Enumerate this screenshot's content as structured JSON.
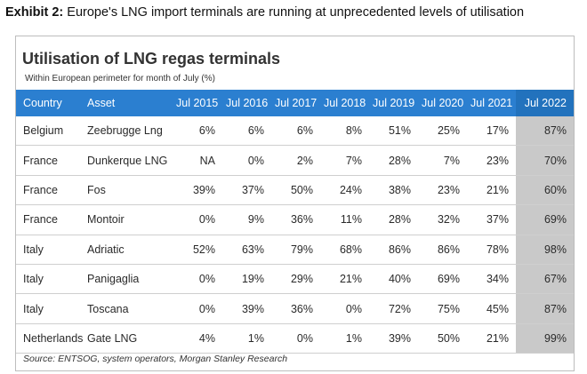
{
  "exhibit": {
    "label": "Exhibit 2:",
    "text": "Europe's LNG import terminals are running at unprecedented levels of utilisation"
  },
  "table_title": "Utilisation of LNG regas terminals",
  "table_subtitle": "Within European perimeter for month of July (%)",
  "columns": [
    "Country",
    "Asset",
    "Jul 2015",
    "Jul 2016",
    "Jul 2017",
    "Jul 2018",
    "Jul 2019",
    "Jul 2020",
    "Jul 2021",
    "Jul 2022"
  ],
  "rows": [
    [
      "Belgium",
      "Zeebrugge Lng",
      "6%",
      "6%",
      "6%",
      "8%",
      "51%",
      "25%",
      "17%",
      "87%"
    ],
    [
      "France",
      "Dunkerque LNG",
      "NA",
      "0%",
      "2%",
      "7%",
      "28%",
      "7%",
      "23%",
      "70%"
    ],
    [
      "France",
      "Fos",
      "39%",
      "37%",
      "50%",
      "24%",
      "38%",
      "23%",
      "21%",
      "60%"
    ],
    [
      "France",
      "Montoir",
      "0%",
      "9%",
      "36%",
      "11%",
      "28%",
      "32%",
      "37%",
      "69%"
    ],
    [
      "Italy",
      "Adriatic",
      "52%",
      "63%",
      "79%",
      "68%",
      "86%",
      "86%",
      "78%",
      "98%"
    ],
    [
      "Italy",
      "Panigaglia",
      "0%",
      "19%",
      "29%",
      "21%",
      "40%",
      "69%",
      "34%",
      "67%"
    ],
    [
      "Italy",
      "Toscana",
      "0%",
      "39%",
      "36%",
      "0%",
      "72%",
      "75%",
      "45%",
      "87%"
    ],
    [
      "Netherlands",
      "Gate LNG",
      "4%",
      "1%",
      "0%",
      "1%",
      "39%",
      "50%",
      "21%",
      "99%"
    ]
  ],
  "source": "Source: ENTSOG, system operators, Morgan Stanley Research",
  "colors": {
    "header_bg": "#2b7fd0",
    "highlight_column_bg": "#c9c9c9"
  }
}
